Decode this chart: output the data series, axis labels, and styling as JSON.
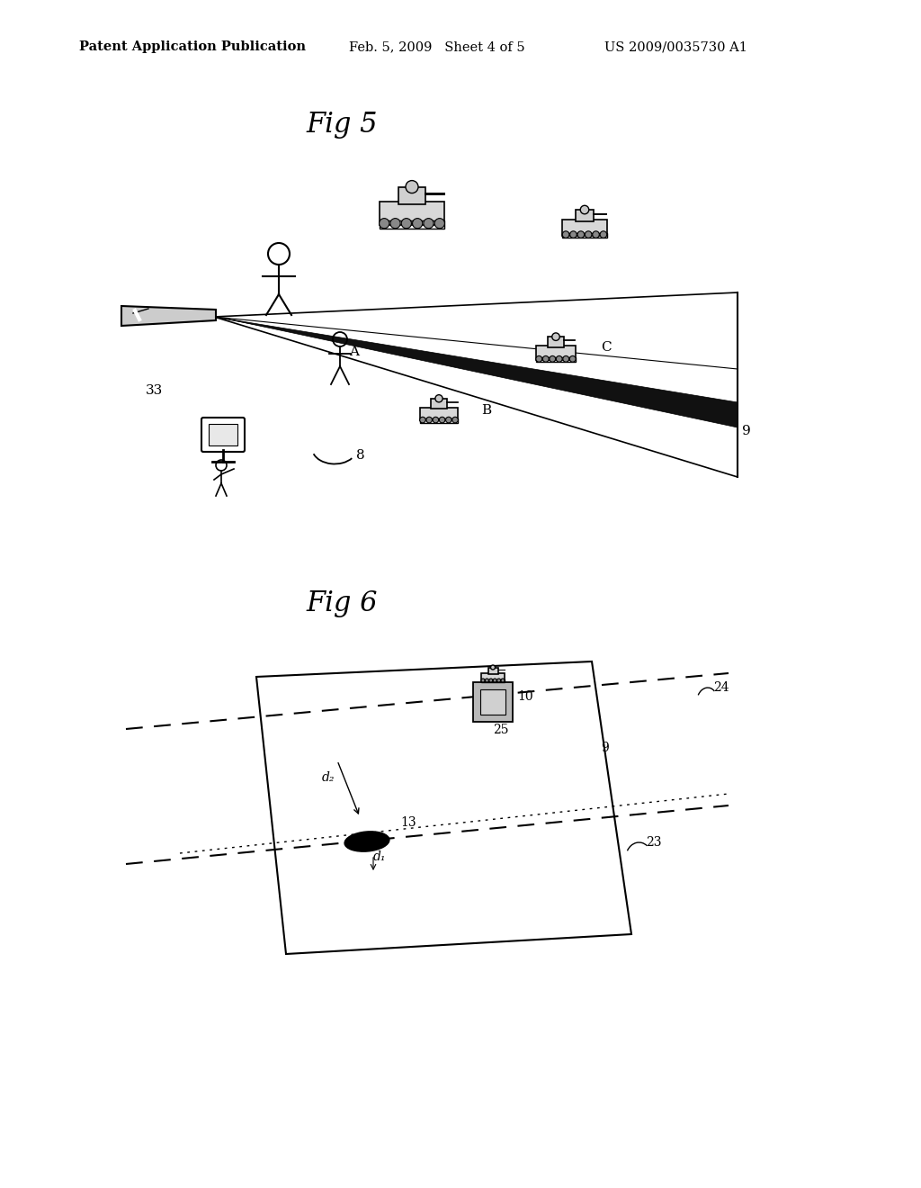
{
  "bg_color": "#ffffff",
  "header_text": "Patent Application Publication",
  "header_date": "Feb. 5, 2009   Sheet 4 of 5",
  "header_patent": "US 2009/0035730 A1",
  "fig5_title": "Fig 5",
  "fig6_title": "Fig 6",
  "label_33": "33",
  "label_8": "8",
  "label_9_fig5": "9",
  "label_A": "A",
  "label_B": "B",
  "label_C": "C",
  "label_9_fig6": "9",
  "label_10": "10",
  "label_13": "13",
  "label_23": "23",
  "label_24": "24",
  "label_25": "25",
  "label_d1": "d₁",
  "label_d2": "d₂"
}
